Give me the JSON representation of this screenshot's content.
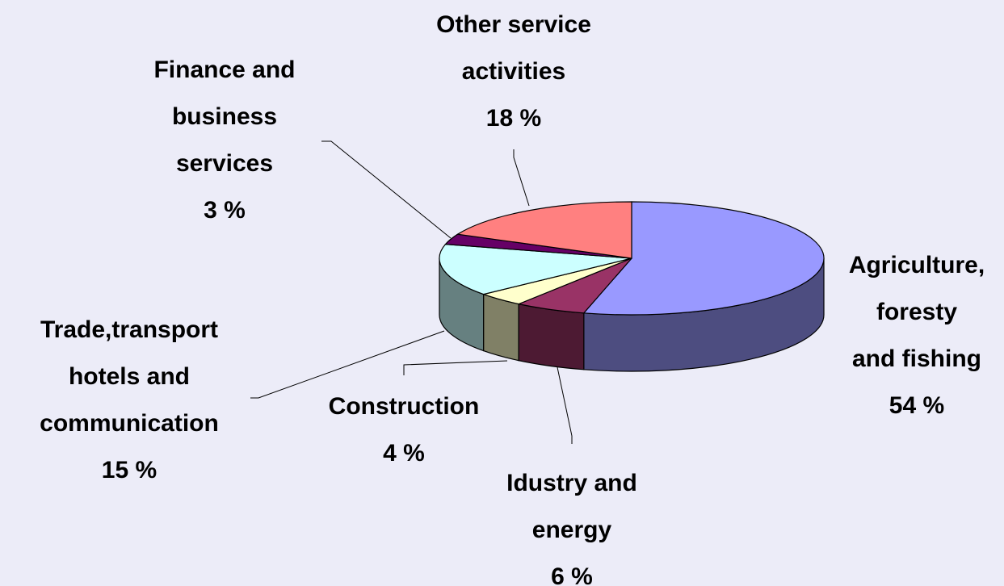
{
  "chart_data": {
    "type": "pie3d",
    "categories": [
      "Agriculture,\nforesty\nand fishing",
      "Idustry and\nenergy",
      "Construction",
      "Trade,transport\nhotels and\ncommunication",
      "Finance and\nbusiness\nservices",
      "Other service\nactivities"
    ],
    "values": [
      54,
      6,
      4,
      15,
      3,
      18
    ],
    "value_labels": [
      "54 %",
      "6 %",
      "4 %",
      "15 %",
      "3 %",
      "18 %"
    ],
    "colors": [
      "#9999ff",
      "#993366",
      "#ffffcc",
      "#ccffff",
      "#660066",
      "#ff8080"
    ]
  }
}
